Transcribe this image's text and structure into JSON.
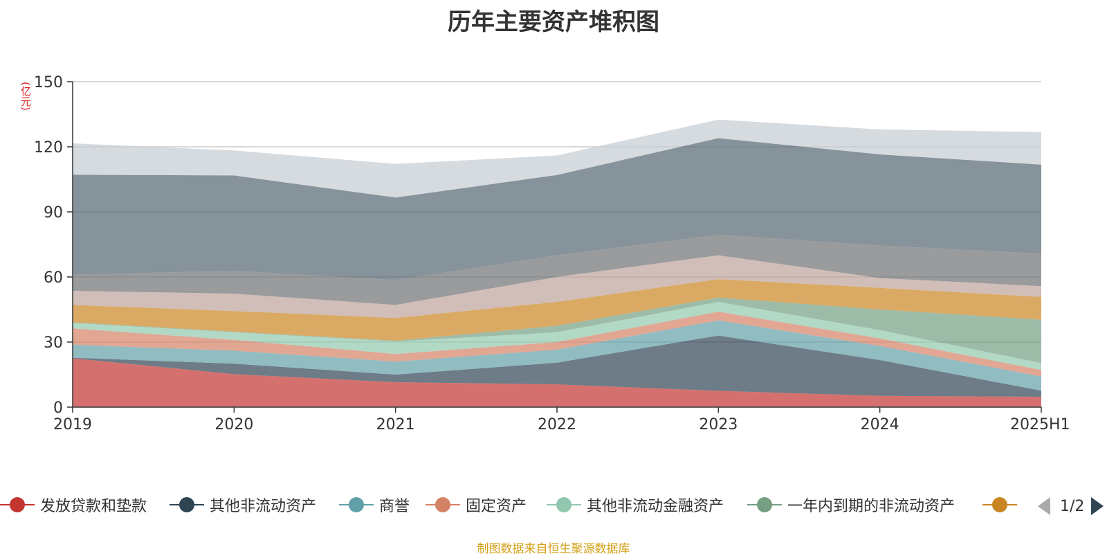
{
  "title": "历年主要资产堆积图",
  "unit": "(亿元)",
  "source_note": "制图数据来自恒生聚源数据库",
  "pager": {
    "text": "1/2"
  },
  "legend_items": [
    {
      "label": "发放贷款和垫款",
      "color": "#c23531"
    },
    {
      "label": "其他非流动资产",
      "color": "#2f4554"
    },
    {
      "label": "商誉",
      "color": "#61a0a8"
    },
    {
      "label": "固定资产",
      "color": "#d48265"
    },
    {
      "label": "其他非流动金融资产",
      "color": "#91c7ae"
    },
    {
      "label": "一年内到期的非流动资产",
      "color": "#749f83"
    },
    {
      "label": "",
      "color": "#ca8622"
    }
  ],
  "chart_data": {
    "type": "area",
    "stacked": true,
    "title": "历年主要资产堆积图",
    "ylabel": "(亿元)",
    "categories": [
      "2019",
      "2020",
      "2021",
      "2022",
      "2023",
      "2024",
      "2025H1"
    ],
    "ylim": [
      0,
      150
    ],
    "yticks": [
      0,
      30,
      60,
      90,
      120,
      150
    ],
    "grid": true,
    "legend_position": "bottom",
    "series": [
      {
        "name": "发放贷款和垫款",
        "color": "#c23531",
        "values": [
          22.5,
          15.2,
          11.5,
          10.5,
          7.5,
          5.2,
          4.8
        ]
      },
      {
        "name": "其他非流动资产",
        "color": "#2f4554",
        "values": [
          0.3,
          4.8,
          3.5,
          10.0,
          25.5,
          16.5,
          2.8
        ]
      },
      {
        "name": "商誉",
        "color": "#61a0a8",
        "values": [
          6.0,
          6.0,
          6.0,
          6.0,
          7.0,
          6.5,
          6.5
        ]
      },
      {
        "name": "固定资产",
        "color": "#d48265",
        "values": [
          7.5,
          5.0,
          3.5,
          3.5,
          4.0,
          3.5,
          3.0
        ]
      },
      {
        "name": "其他非流动金融资产",
        "color": "#91c7ae",
        "values": [
          2.5,
          3.5,
          5.8,
          4.5,
          4.5,
          3.8,
          3.2
        ]
      },
      {
        "name": "一年内到期的非流动资产",
        "color": "#749f83",
        "values": [
          0.3,
          0.3,
          0.3,
          3.0,
          2.0,
          9.5,
          20.0
        ]
      },
      {
        "name": "",
        "color": "#ca8622",
        "values": [
          8.0,
          9.5,
          10.5,
          11.0,
          8.5,
          10.0,
          10.5
        ]
      },
      {
        "name": "",
        "color": "#bda29a",
        "values": [
          6.5,
          8.0,
          6.0,
          11.5,
          11.0,
          4.5,
          5.0
        ]
      },
      {
        "name": "",
        "color": "#6e7074",
        "values": [
          7.5,
          10.5,
          11.5,
          10.0,
          9.5,
          15.0,
          15.0
        ]
      },
      {
        "name": "",
        "color": "#546570",
        "values": [
          46.0,
          44.0,
          38.0,
          37.0,
          44.5,
          42.0,
          41.0
        ]
      },
      {
        "name": "",
        "color": "#c4ccd3",
        "values": [
          14.5,
          11.5,
          15.5,
          9.0,
          8.5,
          11.5,
          15.0
        ]
      }
    ]
  }
}
